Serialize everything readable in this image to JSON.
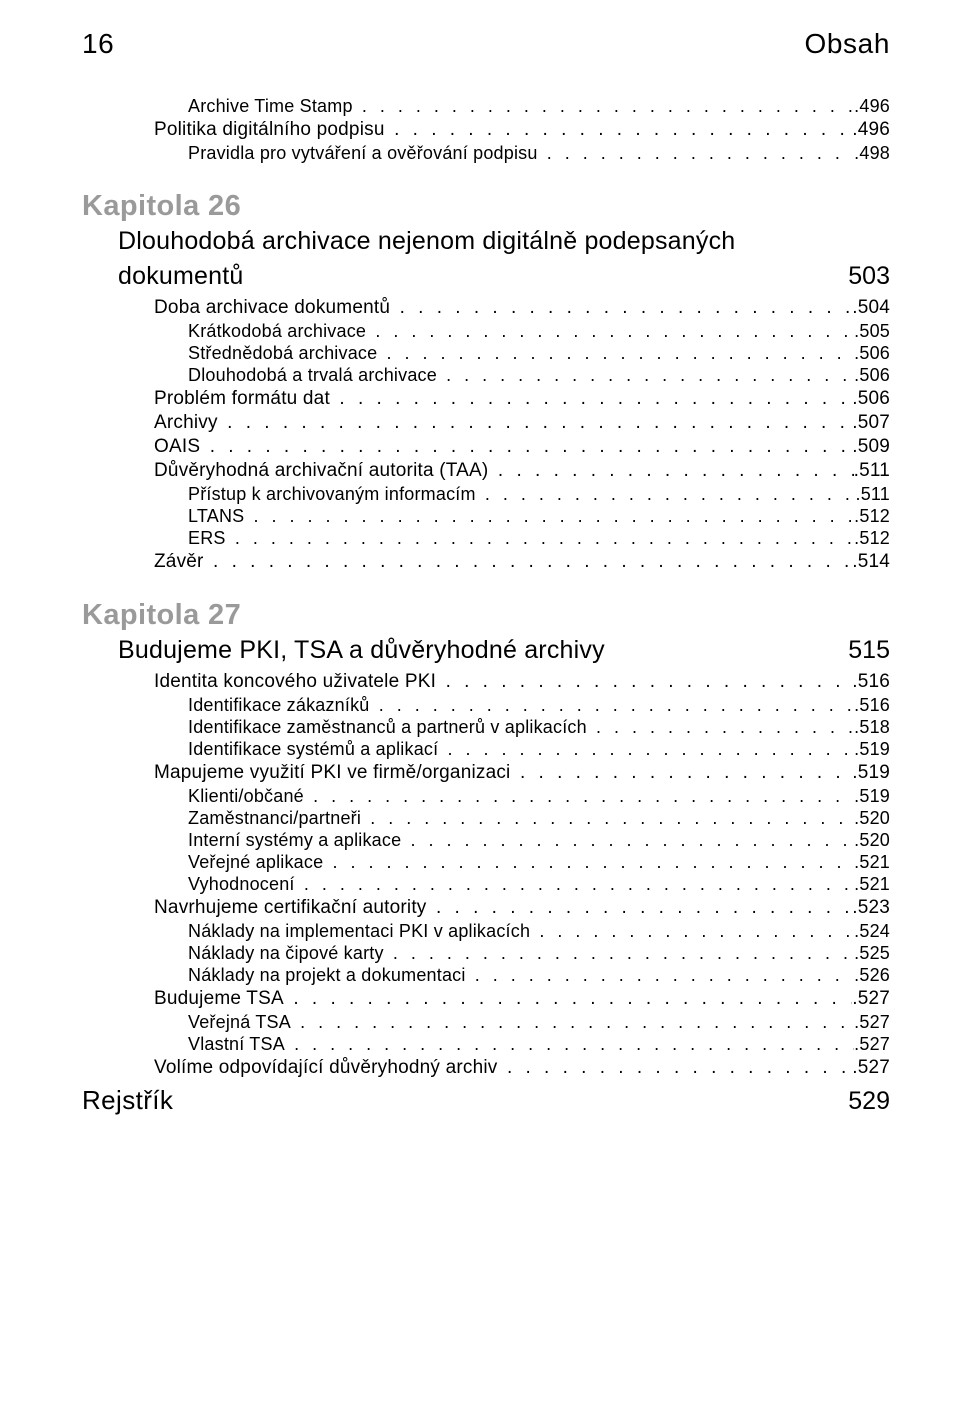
{
  "header": {
    "page_num": "16",
    "title": "Obsah"
  },
  "pre_entries": [
    {
      "level": 3,
      "label": "Archive Time Stamp",
      "page": ".496"
    },
    {
      "level": 2,
      "label": "Politika digitálního podpisu",
      "page": ".496"
    },
    {
      "level": 3,
      "label": "Pravidla pro vytváření a ověřování podpisu",
      "page": ".498"
    }
  ],
  "ch26": {
    "label": "Kapitola 26",
    "title_line1": "Dlouhodobá archivace nejenom digitálně podepsaných",
    "title_line2": "dokumentů",
    "page": "503",
    "entries": [
      {
        "level": 2,
        "label": "Doba archivace dokumentů",
        "page": ".504"
      },
      {
        "level": 3,
        "label": "Krátkodobá archivace",
        "page": ".505"
      },
      {
        "level": 3,
        "label": "Střednědobá archivace",
        "page": ".506"
      },
      {
        "level": 3,
        "label": "Dlouhodobá a trvalá archivace",
        "page": ".506"
      },
      {
        "level": 2,
        "label": "Problém formátu dat",
        "page": ".506"
      },
      {
        "level": 2,
        "label": "Archivy",
        "page": ".507"
      },
      {
        "level": 2,
        "label": "OAIS",
        "page": ".509"
      },
      {
        "level": 2,
        "label": "Důvěryhodná archivační autorita (TAA)",
        "page": ".511"
      },
      {
        "level": 3,
        "label": "Přístup k archivovaným informacím",
        "page": ".511"
      },
      {
        "level": 3,
        "label": "LTANS",
        "page": ".512"
      },
      {
        "level": 3,
        "label": "ERS",
        "page": ".512"
      },
      {
        "level": 2,
        "label": "Závěr",
        "page": ".514"
      }
    ]
  },
  "ch27": {
    "label": "Kapitola 27",
    "title": "Budujeme PKI, TSA a důvěryhodné archivy",
    "page": "515",
    "entries": [
      {
        "level": 2,
        "label": "Identita koncového uživatele PKI",
        "page": ".516"
      },
      {
        "level": 3,
        "label": "Identifikace zákazníků",
        "page": ".516"
      },
      {
        "level": 3,
        "label": "Identifikace zaměstnanců a partnerů v aplikacích",
        "page": ".518"
      },
      {
        "level": 3,
        "label": "Identifikace systémů a aplikací",
        "page": ".519"
      },
      {
        "level": 2,
        "label": "Mapujeme využití PKI ve firmě/organizaci",
        "page": ".519"
      },
      {
        "level": 3,
        "label": "Klienti/občané",
        "page": ".519"
      },
      {
        "level": 3,
        "label": "Zaměstnanci/partneři",
        "page": ".520"
      },
      {
        "level": 3,
        "label": "Interní systémy a aplikace",
        "page": ".520"
      },
      {
        "level": 3,
        "label": "Veřejné aplikace",
        "page": ".521"
      },
      {
        "level": 3,
        "label": "Vyhodnocení",
        "page": ".521"
      },
      {
        "level": 2,
        "label": "Navrhujeme certifikační autority",
        "page": ".523"
      },
      {
        "level": 3,
        "label": "Náklady na implementaci PKI v aplikacích",
        "page": ".524"
      },
      {
        "level": 3,
        "label": "Náklady na čipové karty",
        "page": ".525"
      },
      {
        "level": 3,
        "label": "Náklady na projekt a dokumentaci",
        "page": ".526"
      },
      {
        "level": 2,
        "label": "Budujeme TSA",
        "page": ".527"
      },
      {
        "level": 3,
        "label": "Veřejná TSA",
        "page": ".527"
      },
      {
        "level": 3,
        "label": "Vlastní TSA",
        "page": ".527"
      },
      {
        "level": 2,
        "label": "Volíme odpovídající důvěryhodný archiv",
        "page": ".527"
      }
    ]
  },
  "index": {
    "label": "Rejstřík",
    "page": "529"
  },
  "dots": ". . . . . . . . . . . . . . . . . . . . . . . . . . . . . . . . . . . . . . . . . . . . . . . . . . . . . . . . . . . . . . . . . . . . . . . . . . . . . . . . . . . . . . . . . . . . . . . . . . . . . . . . . . . . . . . . . . . . . . . . . . . ."
}
